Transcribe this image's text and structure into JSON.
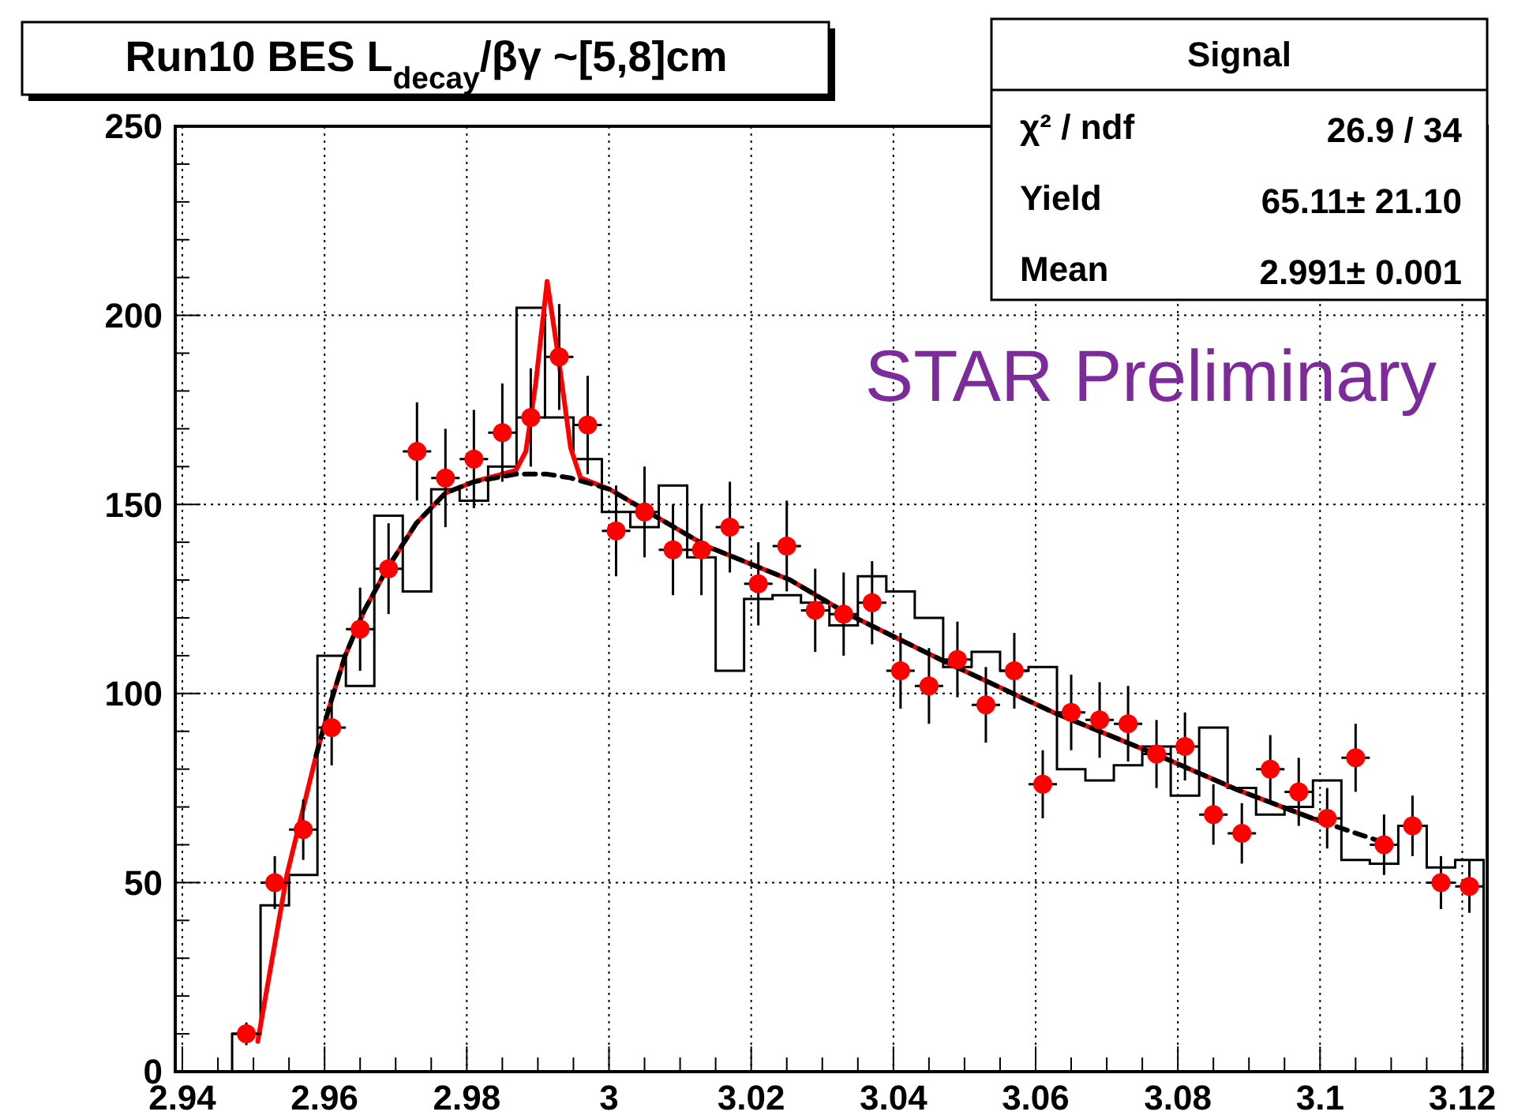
{
  "chart_data": {
    "type": "scatter",
    "title": "Run10 BES L$_{decay}$/βγ ~[5,8]cm",
    "annotations": [
      "STAR Preliminary",
      "Signal",
      "χ² / ndf",
      "26.9 / 34",
      "Yield",
      "65.11± 21.10",
      "Mean",
      "2.991± 0.001"
    ],
    "xlim": [
      2.939,
      3.1235
    ],
    "ylim": [
      0,
      250
    ],
    "xticks": [
      2.94,
      {
        "value": 2.945,
        "label": null
      },
      {
        "value": 2.95,
        "label": null
      },
      {
        "value": 2.955,
        "label": null
      },
      2.96,
      {
        "value": 2.965,
        "label": null
      },
      {
        "value": 2.97,
        "label": null
      },
      {
        "value": 2.975,
        "label": null
      },
      2.98,
      {
        "value": 2.985,
        "label": null
      },
      {
        "value": 2.99,
        "label": null
      },
      {
        "value": 2.995,
        "label": null
      },
      3,
      {
        "value": 3.005,
        "label": null
      },
      {
        "value": 3.01,
        "label": null
      },
      {
        "value": 3.015,
        "label": null
      },
      3.02,
      {
        "value": 3.025,
        "label": null
      },
      {
        "value": 3.03,
        "label": null
      },
      {
        "value": 3.035,
        "label": null
      },
      3.04,
      {
        "value": 3.045,
        "label": null
      },
      {
        "value": 3.05,
        "label": null
      },
      {
        "value": 3.055,
        "label": null
      },
      3.06,
      {
        "value": 3.065,
        "label": null
      },
      {
        "value": 3.07,
        "label": null
      },
      {
        "value": 3.075,
        "label": null
      },
      3.08,
      {
        "value": 3.085,
        "label": null
      },
      {
        "value": 3.09,
        "label": null
      },
      {
        "value": 3.095,
        "label": null
      },
      3.1,
      {
        "value": 3.105,
        "label": null
      },
      {
        "value": 3.11,
        "label": null
      },
      {
        "value": 3.115,
        "label": null
      },
      3.12
    ],
    "yticks": [
      0,
      {
        "value": 10,
        "label": null
      },
      {
        "value": 20,
        "label": null
      },
      {
        "value": 30,
        "label": null
      },
      {
        "value": 40,
        "label": null
      },
      50,
      {
        "value": 60,
        "label": null
      },
      {
        "value": 70,
        "label": null
      },
      {
        "value": 80,
        "label": null
      },
      {
        "value": 90,
        "label": null
      },
      100,
      {
        "value": 110,
        "label": null
      },
      {
        "value": 120,
        "label": null
      },
      {
        "value": 130,
        "label": null
      },
      {
        "value": 140,
        "label": null
      },
      150,
      {
        "value": 160,
        "label": null
      },
      {
        "value": 170,
        "label": null
      },
      {
        "value": 180,
        "label": null
      },
      {
        "value": 190,
        "label": null
      },
      200,
      {
        "value": 210,
        "label": null
      },
      {
        "value": 220,
        "label": null
      },
      {
        "value": 230,
        "label": null
      },
      {
        "value": 240,
        "label": null
      },
      250
    ],
    "grid": true,
    "series": [
      {
        "type": "histogram",
        "color": "#000000",
        "bins": [
          2.947,
          2.951,
          2.955,
          2.959,
          2.963,
          2.967,
          2.971,
          2.975,
          2.979,
          2.983,
          2.987,
          2.991,
          2.995,
          2.999,
          3.003,
          3.007,
          3.011,
          3.015,
          3.019,
          3.023,
          3.027,
          3.031,
          3.035,
          3.039,
          3.043,
          3.047,
          3.051,
          3.055,
          3.059,
          3.063,
          3.067,
          3.071,
          3.075,
          3.079,
          3.083,
          3.087,
          3.091,
          3.095,
          3.099,
          3.103,
          3.107,
          3.111,
          3.115,
          3.119,
          3.123
        ],
        "values": [
          10,
          44,
          52,
          110,
          102,
          147,
          127,
          154,
          151,
          160,
          202,
          173,
          162,
          148,
          144,
          155,
          136,
          106,
          125,
          126,
          124,
          118,
          131,
          127,
          120,
          107,
          111,
          106,
          107,
          80,
          77,
          81,
          86,
          73,
          91,
          75,
          68,
          70,
          77,
          56,
          55,
          65,
          54,
          56
        ]
      },
      {
        "type": "line",
        "color": "#ff0000",
        "line_style": "solid",
        "x": [
          2.9506,
          2.9547,
          2.9588,
          2.9606,
          2.9629,
          2.9656,
          2.9688,
          2.9729,
          2.977,
          2.981,
          2.9869,
          2.9883,
          2.9897,
          2.9913,
          2.9928,
          2.9946,
          2.996,
          3.0001,
          3.0055,
          3.0137,
          3.0255,
          3.0336,
          3.0477,
          3.0625,
          3.0773,
          3.0884,
          3.0996
        ],
        "values": [
          8,
          52,
          83.5,
          96,
          110,
          122,
          133,
          145,
          153,
          156,
          159,
          164,
          182,
          209,
          190,
          165,
          157,
          154,
          148,
          139,
          130,
          121,
          108,
          95,
          83.6,
          74.5,
          66.5
        ]
      },
      {
        "type": "line",
        "color": "#000000",
        "line_style": "dashed",
        "x": [
          2.9588,
          2.9606,
          2.9629,
          2.9656,
          2.9688,
          2.9729,
          2.977,
          2.981,
          2.9869,
          2.9889,
          2.9913,
          2.9946,
          3.0001,
          3.0055,
          3.0137,
          3.0255,
          3.0336,
          3.0477,
          3.0625,
          3.0773,
          3.0884,
          3.0996,
          3.1099
        ],
        "values": [
          83.5,
          96,
          110,
          122,
          133,
          145,
          153,
          156,
          158,
          158,
          158,
          157,
          154,
          148,
          139,
          130,
          121,
          108,
          95,
          83.6,
          74.5,
          66.5,
          60
        ]
      },
      {
        "color": "#ff0000",
        "marker": "circle",
        "x": [
          2.949,
          2.953,
          2.957,
          2.961,
          2.965,
          2.969,
          2.973,
          2.977,
          2.981,
          2.985,
          2.989,
          2.993,
          2.997,
          3.001,
          3.005,
          3.009,
          3.013,
          3.017,
          3.021,
          3.025,
          3.029,
          3.033,
          3.037,
          3.041,
          3.045,
          3.049,
          3.053,
          3.057,
          3.061,
          3.065,
          3.069,
          3.073,
          3.077,
          3.081,
          3.085,
          3.089,
          3.093,
          3.097,
          3.101,
          3.105,
          3.109,
          3.113,
          3.117,
          3.121
        ],
        "values": [
          10,
          50,
          64,
          91,
          117,
          133,
          164,
          157,
          162,
          169,
          173,
          189,
          171,
          143,
          148,
          138,
          138,
          144,
          129,
          139,
          122,
          121,
          124,
          106,
          102,
          109,
          97,
          106,
          76,
          95,
          93,
          92,
          84,
          86,
          68,
          63,
          80,
          74,
          67,
          83,
          60,
          65,
          50,
          49
        ],
        "errors": [
          3,
          7,
          8,
          10,
          11,
          12,
          13,
          13,
          13,
          13,
          13,
          14,
          13,
          12,
          12,
          12,
          12,
          12,
          11,
          12,
          11,
          11,
          11,
          10,
          10,
          10,
          10,
          10,
          9,
          10,
          10,
          10,
          9,
          9,
          8,
          8,
          9,
          9,
          8,
          9,
          8,
          8,
          7,
          7
        ],
        "xerrors": [
          0.002,
          0.002,
          0.002,
          0.002,
          0.002,
          0.002,
          0.002,
          0.002,
          0.002,
          0.002,
          0.002,
          0.002,
          0.002,
          0.002,
          0.002,
          0.002,
          0.002,
          0.002,
          0.002,
          0.002,
          0.002,
          0.002,
          0.002,
          0.002,
          0.002,
          0.002,
          0.002,
          0.002,
          0.002,
          0.002,
          0.002,
          0.002,
          0.002,
          0.002,
          0.002,
          0.002,
          0.002,
          0.002,
          0.002,
          0.002,
          0.002,
          0.002,
          0.002,
          0.002
        ]
      }
    ]
  }
}
